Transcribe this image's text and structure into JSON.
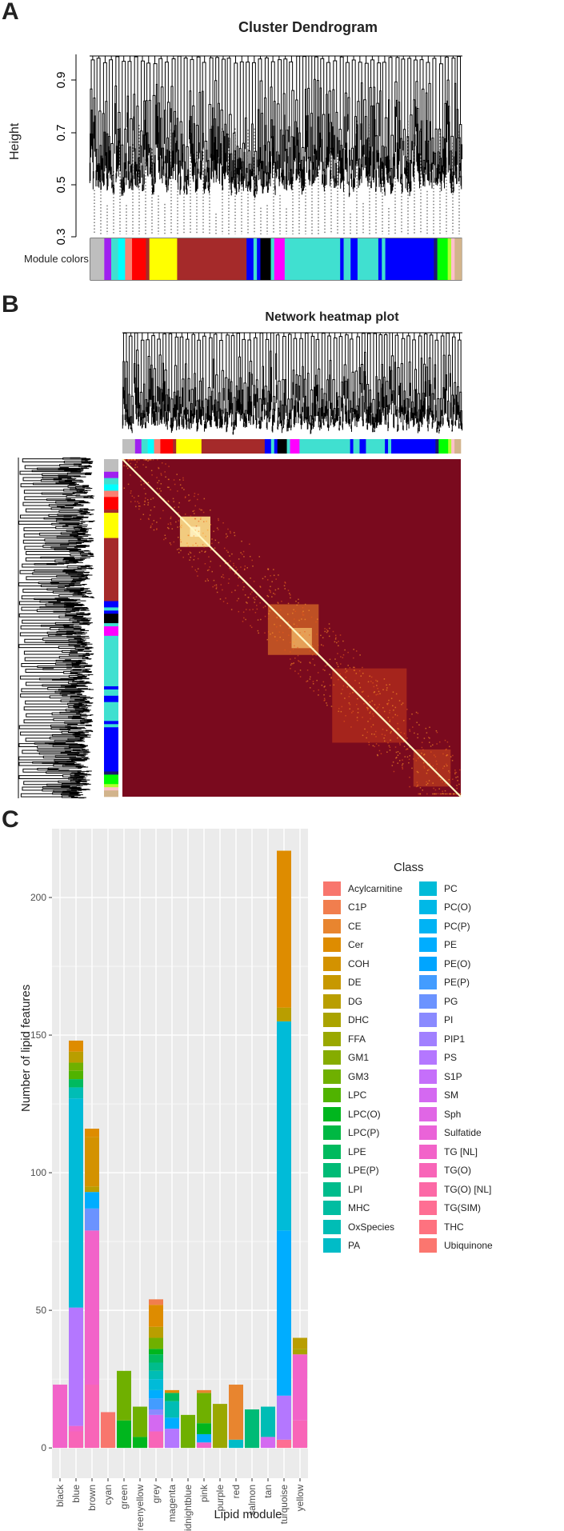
{
  "panelA": {
    "letter": "A",
    "title": "Cluster Dendrogram",
    "ylabel": "Height",
    "yticks": [
      "0.9",
      "0.7",
      "0.5",
      "0.3"
    ],
    "module_colors_label": "Module colors",
    "color_strip": [
      {
        "color": "#bebebe",
        "w": 4
      },
      {
        "color": "#a020f0",
        "w": 2
      },
      {
        "color": "#40e0d0",
        "w": 2
      },
      {
        "color": "#00ffff",
        "w": 2
      },
      {
        "color": "#fa8072",
        "w": 2
      },
      {
        "color": "#ff0000",
        "w": 4
      },
      {
        "color": "#a52a2a",
        "w": 1
      },
      {
        "color": "#ffff00",
        "w": 8
      },
      {
        "color": "#a52a2a",
        "w": 20
      },
      {
        "color": "#0000ff",
        "w": 2
      },
      {
        "color": "#40e0d0",
        "w": 1
      },
      {
        "color": "#0000ff",
        "w": 1
      },
      {
        "color": "#000000",
        "w": 3
      },
      {
        "color": "#40e0d0",
        "w": 1
      },
      {
        "color": "#ff00ff",
        "w": 3
      },
      {
        "color": "#40e0d0",
        "w": 16
      },
      {
        "color": "#0000ff",
        "w": 1
      },
      {
        "color": "#40e0d0",
        "w": 2
      },
      {
        "color": "#0000ff",
        "w": 2
      },
      {
        "color": "#40e0d0",
        "w": 6
      },
      {
        "color": "#0000ff",
        "w": 1
      },
      {
        "color": "#40e0d0",
        "w": 1
      },
      {
        "color": "#0000ff",
        "w": 14
      },
      {
        "color": "#191970",
        "w": 1
      },
      {
        "color": "#00ff00",
        "w": 3
      },
      {
        "color": "#adff2f",
        "w": 1
      },
      {
        "color": "#ffc0cb",
        "w": 1
      },
      {
        "color": "#d2b48c",
        "w": 2
      }
    ]
  },
  "panelB": {
    "letter": "B",
    "title": "Network heatmap plot"
  },
  "panelC": {
    "letter": "C",
    "colors": {
      "panel_bg": "#ebebeb",
      "grid": "#ffffff"
    },
    "chart_data": {
      "type": "bar",
      "stacked": true,
      "xlabel": "Lipid module",
      "ylabel": "Number of lipid features",
      "ylim": [
        0,
        225
      ],
      "yticks": [
        0,
        50,
        100,
        150,
        200
      ],
      "grid": true,
      "legend_position": "right",
      "legend_title": "Class",
      "categories": [
        "black",
        "blue",
        "brown",
        "cyan",
        "green",
        "greenyellow",
        "grey",
        "magenta",
        "midnightblue",
        "pink",
        "purple",
        "red",
        "salmon",
        "tan",
        "turquoise",
        "yellow"
      ],
      "classes": [
        {
          "name": "Acylcarnitine",
          "color": "#F8766D"
        },
        {
          "name": "C1P",
          "color": "#F17E4E"
        },
        {
          "name": "CE",
          "color": "#E8852F"
        },
        {
          "name": "Cer",
          "color": "#DE8C00"
        },
        {
          "name": "COH",
          "color": "#D39200"
        },
        {
          "name": "DE",
          "color": "#C79800"
        },
        {
          "name": "DG",
          "color": "#B99E00"
        },
        {
          "name": "DHC",
          "color": "#AAA300"
        },
        {
          "name": "FFA",
          "color": "#9AA800"
        },
        {
          "name": "GM1",
          "color": "#86AC00"
        },
        {
          "name": "GM3",
          "color": "#6FB000"
        },
        {
          "name": "LPC",
          "color": "#50B300"
        },
        {
          "name": "LPC(O)",
          "color": "#00B61E"
        },
        {
          "name": "LPC(P)",
          "color": "#00B843"
        },
        {
          "name": "LPE",
          "color": "#00BA5E"
        },
        {
          "name": "LPE(P)",
          "color": "#00BB76"
        },
        {
          "name": "LPI",
          "color": "#00BC8C"
        },
        {
          "name": "MHC",
          "color": "#00BDA1"
        },
        {
          "name": "OxSpecies",
          "color": "#00BDB5"
        },
        {
          "name": "PA",
          "color": "#00BCC7"
        },
        {
          "name": "PC",
          "color": "#00BBD8"
        },
        {
          "name": "PC(O)",
          "color": "#00B8E7"
        },
        {
          "name": "PC(P)",
          "color": "#00B3F4"
        },
        {
          "name": "PE",
          "color": "#00ADFF"
        },
        {
          "name": "PE(O)",
          "color": "#00A5FF"
        },
        {
          "name": "PE(P)",
          "color": "#439CFF"
        },
        {
          "name": "PG",
          "color": "#6B93FF"
        },
        {
          "name": "PI",
          "color": "#8A8AFF"
        },
        {
          "name": "PIP1",
          "color": "#A180FF"
        },
        {
          "name": "PS",
          "color": "#B477FF"
        },
        {
          "name": "S1P",
          "color": "#C56FFA"
        },
        {
          "name": "SM",
          "color": "#D469F1"
        },
        {
          "name": "Sph",
          "color": "#E066E5"
        },
        {
          "name": "Sulfatide",
          "color": "#EA63D8"
        },
        {
          "name": "TG [NL]",
          "color": "#F263C9"
        },
        {
          "name": "TG(O)",
          "color": "#F865B8"
        },
        {
          "name": "TG(O) [NL]",
          "color": "#FC69A6"
        },
        {
          "name": "TG(SIM)",
          "color": "#FE6E93"
        },
        {
          "name": "THC",
          "color": "#FE727F"
        },
        {
          "name": "Ubiquinone",
          "color": "#FB766F"
        }
      ],
      "stacks": [
        [
          {
            "cls": "TG [NL]",
            "value": 23
          }
        ],
        [
          {
            "cls": "TG(O)",
            "value": 6
          },
          {
            "cls": "TG [NL]",
            "value": 2
          },
          {
            "cls": "PS",
            "value": 43
          },
          {
            "cls": "PC",
            "value": 76
          },
          {
            "cls": "OxSpecies",
            "value": 4
          },
          {
            "cls": "LPE",
            "value": 3
          },
          {
            "cls": "LPC",
            "value": 3
          },
          {
            "cls": "GM3",
            "value": 3
          },
          {
            "cls": "DG",
            "value": 4
          },
          {
            "cls": "Cer",
            "value": 4
          }
        ],
        [
          {
            "cls": "TG(O)",
            "value": 23
          },
          {
            "cls": "TG [NL]",
            "value": 56
          },
          {
            "cls": "PG",
            "value": 8
          },
          {
            "cls": "PE",
            "value": 6
          },
          {
            "cls": "DG",
            "value": 2
          },
          {
            "cls": "COH",
            "value": 18
          },
          {
            "cls": "Cer",
            "value": 3
          }
        ],
        [
          {
            "cls": "Acylcarnitine",
            "value": 13
          }
        ],
        [
          {
            "cls": "LPC(O)",
            "value": 10
          },
          {
            "cls": "GM3",
            "value": 18
          }
        ],
        [
          {
            "cls": "LPC(O)",
            "value": 4
          },
          {
            "cls": "GM3",
            "value": 11
          }
        ],
        [
          {
            "cls": "TG(O)",
            "value": 6
          },
          {
            "cls": "SM",
            "value": 6
          },
          {
            "cls": "PI",
            "value": 2
          },
          {
            "cls": "PE(P)",
            "value": 4
          },
          {
            "cls": "PE",
            "value": 3
          },
          {
            "cls": "PC",
            "value": 4
          },
          {
            "cls": "OxSpecies",
            "value": 3
          },
          {
            "cls": "LPI",
            "value": 3
          },
          {
            "cls": "LPE",
            "value": 3
          },
          {
            "cls": "LPC(O)",
            "value": 2
          },
          {
            "cls": "GM3",
            "value": 4
          },
          {
            "cls": "DG",
            "value": 4
          },
          {
            "cls": "Cer",
            "value": 8
          },
          {
            "cls": "C1P",
            "value": 2
          }
        ],
        [
          {
            "cls": "PS",
            "value": 7
          },
          {
            "cls": "PE",
            "value": 4
          },
          {
            "cls": "OxSpecies",
            "value": 6
          },
          {
            "cls": "LPE",
            "value": 3
          },
          {
            "cls": "Cer",
            "value": 1
          }
        ],
        [
          {
            "cls": "GM3",
            "value": 12
          }
        ],
        [
          {
            "cls": "TG [NL]",
            "value": 2
          },
          {
            "cls": "PE",
            "value": 3
          },
          {
            "cls": "LPC(O)",
            "value": 4
          },
          {
            "cls": "GM3",
            "value": 11
          },
          {
            "cls": "CE",
            "value": 1
          }
        ],
        [
          {
            "cls": "FFA",
            "value": 16
          }
        ],
        [
          {
            "cls": "PA",
            "value": 3
          },
          {
            "cls": "CE",
            "value": 20
          }
        ],
        [
          {
            "cls": "LPE(P)",
            "value": 14
          }
        ],
        [
          {
            "cls": "SM",
            "value": 4
          },
          {
            "cls": "OxSpecies",
            "value": 11
          }
        ],
        [
          {
            "cls": "TG(SIM)",
            "value": 3
          },
          {
            "cls": "PS",
            "value": 16
          },
          {
            "cls": "PE",
            "value": 60
          },
          {
            "cls": "PC",
            "value": 76
          },
          {
            "cls": "DG",
            "value": 5
          },
          {
            "cls": "Cer",
            "value": 57
          }
        ],
        [
          {
            "cls": "TG(O)",
            "value": 10
          },
          {
            "cls": "TG [NL]",
            "value": 24
          },
          {
            "cls": "DHC",
            "value": 2
          },
          {
            "cls": "DG",
            "value": 4
          }
        ]
      ]
    }
  }
}
